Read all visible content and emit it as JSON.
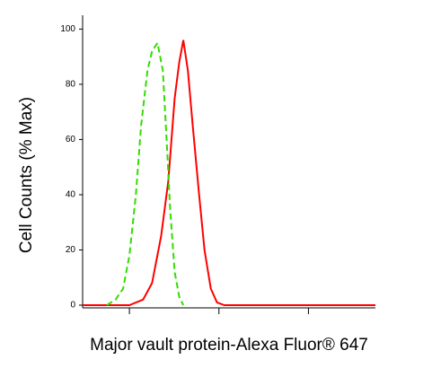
{
  "chart_data": {
    "type": "line",
    "x_label": "Major vault protein-Alexa Fluor® 647",
    "y_label": "Cell Counts (% Max)",
    "log_x": true,
    "xlim": [
      3,
      5600
    ],
    "xticks": [
      10,
      100,
      1000
    ],
    "ylim": [
      0,
      105
    ],
    "yticks": [
      0,
      20,
      40,
      60,
      80,
      100
    ],
    "series": [
      {
        "color": "#ff0000",
        "dash": false,
        "x": [
          3,
          10,
          14.2,
          17.9,
          22.6,
          27.2,
          32,
          36,
          40,
          45,
          51,
          60,
          69,
          81,
          95,
          115,
          5600
        ],
        "values": [
          0,
          0,
          2,
          8,
          25,
          45,
          75,
          88,
          96,
          85,
          65,
          40,
          20,
          6,
          1,
          0,
          0
        ]
      },
      {
        "color": "#33dd00",
        "dash": true,
        "x": [
          5.6,
          7,
          8.5,
          10,
          11.8,
          13.5,
          15.9,
          17.9,
          20.6,
          23.6,
          26,
          28.5,
          32,
          36,
          40
        ],
        "values": [
          0,
          2,
          6,
          18,
          40,
          65,
          85,
          92,
          95,
          85,
          60,
          35,
          12,
          3,
          0
        ]
      }
    ]
  }
}
